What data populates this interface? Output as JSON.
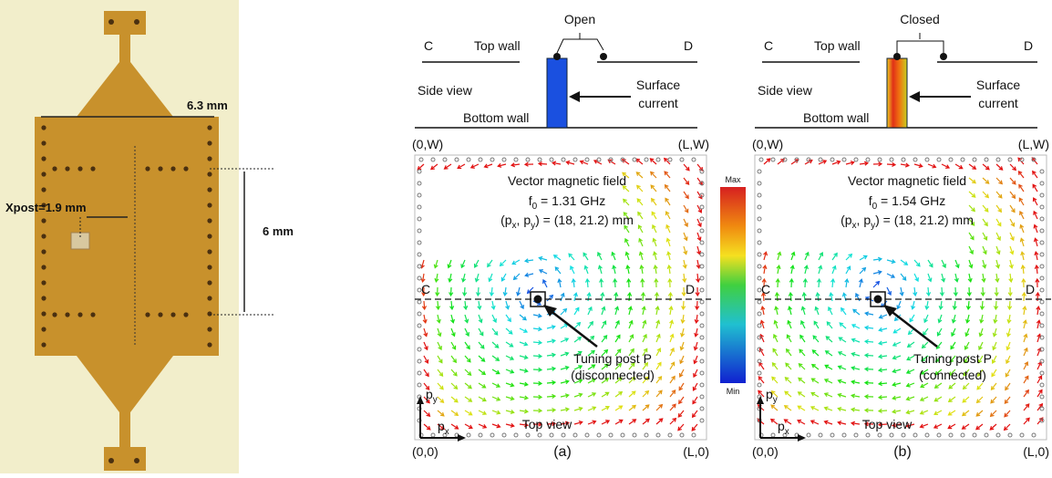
{
  "photo": {
    "width_label": "6.3 mm",
    "post_label": "Xpost=1.9 mm",
    "height_label": "6 mm"
  },
  "panels": [
    {
      "switch": "Open",
      "side_view": {
        "left": "C",
        "top_wall": "Top wall",
        "right": "D",
        "side": "Side view",
        "current": [
          "Surface",
          "current"
        ],
        "bottom_wall": "Bottom wall"
      },
      "corners": {
        "top_left": "(0,W)",
        "top_right": "(L,W)",
        "bottom_left": "(0,0)",
        "bottom_right": "(L,0)"
      },
      "field_title": "Vector magnetic field",
      "freq": [
        "f",
        "0",
        " = 1.31 GHz"
      ],
      "position": [
        "(p",
        "x",
        ", p",
        "y",
        ") = (18, 21.2) mm"
      ],
      "cut_left": "C",
      "cut_right": "D",
      "post": [
        "Tuning post P",
        "(disconnected)"
      ],
      "axis_y": [
        "p",
        "y"
      ],
      "axis_x": [
        "p",
        "x"
      ],
      "view": "Top view",
      "label": "(a)"
    },
    {
      "switch": "Closed",
      "side_view": {
        "left": "C",
        "top_wall": "Top wall",
        "right": "D",
        "side": "Side view",
        "current": [
          "Surface",
          "current"
        ],
        "bottom_wall": "Bottom wall"
      },
      "corners": {
        "top_left": "(0,W)",
        "top_right": "(L,W)",
        "bottom_left": "(0,0)",
        "bottom_right": "(L,0)"
      },
      "field_title": "Vector magnetic field",
      "freq": [
        "f",
        "0",
        " = 1.54 GHz"
      ],
      "position": [
        "(p",
        "x",
        ", p",
        "y",
        ") = (18, 21.2) mm"
      ],
      "cut_left": "C",
      "cut_right": "D",
      "post": [
        "Tuning post P",
        "(connected)"
      ],
      "axis_y": [
        "p",
        "y"
      ],
      "axis_x": [
        "p",
        "x"
      ],
      "view": "Top view",
      "label": "(b)"
    }
  ],
  "colorbar": {
    "max": "Max",
    "min": "Min"
  }
}
